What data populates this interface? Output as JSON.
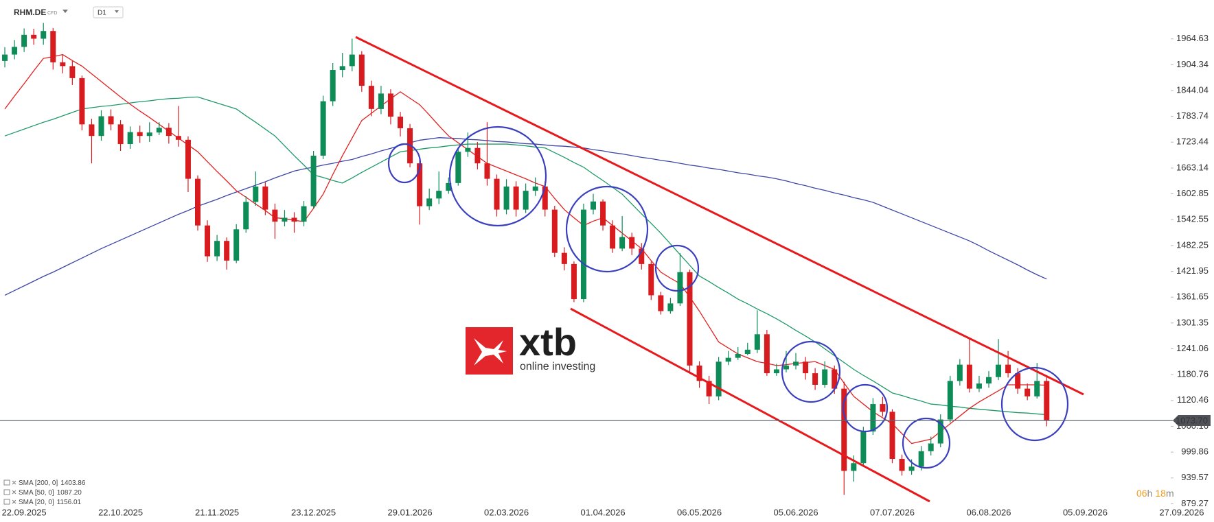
{
  "header": {
    "symbol": "RHM.DE",
    "instrument": "CFD",
    "interval": "D1"
  },
  "logo": {
    "name": "xtb",
    "tagline": "online investing"
  },
  "countdown": [
    "06",
    "h",
    "18",
    "m"
  ],
  "chart_data": {
    "type": "candlestick",
    "up_color": "#0d8c58",
    "down_color": "#d81b1f",
    "ylim": [
      876.7,
      2055.4
    ],
    "yticks": [
      1964.63,
      1904.34,
      1844.04,
      1783.74,
      1723.44,
      1663.14,
      1602.85,
      1542.55,
      1482.25,
      1421.95,
      1361.65,
      1301.35,
      1241.06,
      1180.76,
      1120.46,
      1060.16,
      999.86,
      939.57,
      879.27
    ],
    "last_price_label": "1073.70",
    "categories": [
      null,
      null,
      "22.09.2025",
      null,
      null,
      null,
      null,
      null,
      null,
      null,
      null,
      null,
      "22.10.2025",
      null,
      null,
      null,
      null,
      null,
      null,
      null,
      null,
      null,
      "21.11.2025",
      null,
      null,
      null,
      null,
      null,
      null,
      null,
      null,
      null,
      "23.12.2025",
      null,
      null,
      null,
      null,
      null,
      null,
      null,
      null,
      null,
      "29.01.2026",
      null,
      null,
      null,
      null,
      null,
      null,
      null,
      null,
      null,
      "02.03.2026",
      null,
      null,
      null,
      null,
      null,
      null,
      null,
      null,
      null,
      "01.04.2026",
      null,
      null,
      null,
      null,
      null,
      null,
      null,
      null,
      null,
      "06.05.2026",
      null,
      null,
      null,
      null,
      null,
      null,
      null,
      null,
      null,
      "05.06.2026",
      null,
      null,
      null,
      null,
      null,
      null,
      null,
      null,
      null,
      "07.07.2026",
      null,
      null,
      null,
      null,
      null,
      null,
      null,
      null,
      null,
      "06.08.2026",
      null,
      null,
      null,
      null,
      null,
      null,
      null,
      null,
      null,
      "05.09.2026",
      null,
      null,
      null,
      null,
      null,
      null,
      null,
      null,
      null,
      "27.09.2026"
    ],
    "open": [
      1913,
      1928,
      1946,
      1974,
      1965,
      1983,
      1910,
      1901,
      1873,
      1765,
      1738,
      1784,
      1765,
      1719,
      1747,
      1738,
      1746,
      1757,
      1738,
      1729,
      1638,
      1529,
      1457,
      1493,
      1447,
      1520,
      1584,
      1620,
      1566,
      1538,
      1547,
      1538,
      1574,
      1692,
      1819,
      1892,
      1901,
      1928,
      1855,
      1801,
      1837,
      1783,
      1756,
      1674,
      1574,
      1592,
      1610,
      1628,
      1701,
      1710,
      1674,
      1638,
      1566,
      1620,
      1566,
      1610,
      1620,
      1566,
      1465,
      1439,
      1357,
      1566,
      1585,
      1529,
      1475,
      1502,
      1475,
      1439,
      1366,
      1329,
      1347,
      1420,
      1202,
      1166,
      1130,
      1211,
      1220,
      1229,
      1239,
      1275,
      1184,
      1193,
      1202,
      1211,
      1184,
      1157,
      1193,
      1148,
      956,
      974,
      1048,
      1112,
      1094,
      984,
      956,
      966,
      1002,
      1020,
      1076,
      1166,
      1204,
      1148,
      1160,
      1175,
      1204,
      1184,
      1148,
      1130,
      1166,
      null,
      null,
      null,
      null,
      null,
      null,
      null,
      null,
      null,
      null,
      null,
      null,
      null,
      null
    ],
    "high": [
      1945,
      1962,
      1989,
      1988,
      2002,
      1990,
      1927,
      1913,
      1879,
      1778,
      1798,
      1800,
      1775,
      1760,
      1762,
      1770,
      1770,
      1768,
      1808,
      1737,
      1646,
      1541,
      1507,
      1501,
      1532,
      1597,
      1655,
      1630,
      1580,
      1565,
      1560,
      1586,
      1703,
      1832,
      1908,
      1932,
      1965,
      1936,
      1867,
      1855,
      1847,
      1794,
      1766,
      1682,
      1615,
      1655,
      1641,
      1712,
      1746,
      1724,
      1770,
      1648,
      1637,
      1632,
      1627,
      1641,
      1632,
      1575,
      1478,
      1445,
      1580,
      1603,
      1590,
      1541,
      1551,
      1512,
      1488,
      1445,
      1374,
      1360,
      1464,
      1426,
      1212,
      1178,
      1222,
      1236,
      1245,
      1255,
      1331,
      1285,
      1206,
      1236,
      1231,
      1222,
      1196,
      1212,
      1202,
      1164,
      992,
      1059,
      1126,
      1129,
      1100,
      994,
      983,
      1014,
      1036,
      1088,
      1178,
      1217,
      1263,
      1178,
      1189,
      1264,
      1236,
      1196,
      1160,
      1208,
      1175,
      null,
      null,
      null,
      null,
      null,
      null,
      null,
      null,
      null,
      null,
      null,
      null,
      null,
      null
    ],
    "low": [
      1898,
      1917,
      1934,
      1951,
      1951,
      1893,
      1884,
      1857,
      1751,
      1674,
      1727,
      1751,
      1703,
      1708,
      1722,
      1724,
      1740,
      1720,
      1713,
      1607,
      1517,
      1444,
      1446,
      1426,
      1441,
      1512,
      1575,
      1553,
      1498,
      1527,
      1512,
      1527,
      1568,
      1684,
      1808,
      1875,
      1889,
      1841,
      1784,
      1789,
      1765,
      1737,
      1665,
      1531,
      1565,
      1579,
      1603,
      1622,
      1689,
      1660,
      1622,
      1550,
      1555,
      1550,
      1558,
      1598,
      1550,
      1455,
      1424,
      1350,
      1350,
      1555,
      1517,
      1465,
      1469,
      1460,
      1426,
      1355,
      1321,
      1323,
      1341,
      1188,
      1150,
      1112,
      1121,
      1203,
      1215,
      1226,
      1231,
      1178,
      1178,
      1186,
      1193,
      1169,
      1145,
      1150,
      1136,
      900,
      931,
      965,
      1040,
      1083,
      974,
      945,
      947,
      957,
      992,
      1011,
      1069,
      1155,
      1139,
      1140,
      1150,
      1168,
      1174,
      1136,
      1121,
      1125,
      1060,
      null,
      null,
      null,
      null,
      null,
      null,
      null,
      null,
      null,
      null,
      null,
      null,
      null,
      null
    ],
    "close": [
      1928,
      1946,
      1974,
      1965,
      1983,
      1910,
      1901,
      1873,
      1765,
      1738,
      1784,
      1765,
      1719,
      1747,
      1738,
      1746,
      1757,
      1738,
      1729,
      1638,
      1529,
      1457,
      1493,
      1447,
      1520,
      1584,
      1620,
      1566,
      1538,
      1547,
      1538,
      1574,
      1692,
      1819,
      1892,
      1901,
      1928,
      1855,
      1801,
      1837,
      1783,
      1756,
      1674,
      1574,
      1592,
      1610,
      1628,
      1701,
      1710,
      1674,
      1638,
      1566,
      1620,
      1566,
      1610,
      1620,
      1566,
      1465,
      1439,
      1357,
      1566,
      1585,
      1529,
      1475,
      1502,
      1475,
      1439,
      1366,
      1329,
      1347,
      1420,
      1202,
      1166,
      1130,
      1211,
      1220,
      1229,
      1239,
      1275,
      1184,
      1193,
      1202,
      1211,
      1184,
      1157,
      1193,
      1148,
      956,
      974,
      1048,
      1112,
      1094,
      984,
      956,
      966,
      1002,
      1020,
      1076,
      1166,
      1204,
      1148,
      1160,
      1175,
      1204,
      1184,
      1148,
      1130,
      1166,
      1073.7,
      null,
      null,
      null,
      null,
      null,
      null,
      null,
      null,
      null,
      null,
      null,
      null,
      null,
      null
    ],
    "series": [
      {
        "name": "SMA [200, 0]",
        "legend_value": "1403.86",
        "color": "#3d45a6",
        "values": [
          1366,
          1377,
          1388,
          1399,
          1410,
          1420,
          1431,
          1442,
          1453,
          1464,
          1475,
          1485,
          1495,
          1505,
          1515,
          1525,
          1535,
          1545,
          1555,
          1564,
          1574,
          1582,
          1590,
          1599,
          1607,
          1615,
          1623,
          1631,
          1640,
          1648,
          1656,
          1661,
          1665,
          1670,
          1674,
          1679,
          1683,
          1690,
          1696,
          1703,
          1709,
          1716,
          1722,
          1728,
          1731,
          1734,
          1733,
          1732,
          1730,
          1729,
          1727,
          1725,
          1724,
          1722,
          1720,
          1719,
          1717,
          1715,
          1714,
          1712,
          1710,
          1706,
          1703,
          1699,
          1696,
          1692,
          1688,
          1685,
          1681,
          1678,
          1674,
          1670,
          1667,
          1663,
          1660,
          1656,
          1652,
          1649,
          1645,
          1642,
          1638,
          1633,
          1627,
          1622,
          1616,
          1611,
          1605,
          1600,
          1594,
          1589,
          1583,
          1574,
          1565,
          1556,
          1547,
          1538,
          1529,
          1520,
          1511,
          1502,
          1493,
          1482,
          1470,
          1459,
          1448,
          1437,
          1425,
          1414,
          1403.86,
          null,
          null,
          null,
          null,
          null,
          null,
          null,
          null,
          null,
          null,
          null,
          null,
          null,
          null
        ]
      },
      {
        "name": "SMA [50, 0]",
        "legend_value": "1087.20",
        "color": "#1d9a68",
        "values": [
          1738,
          1746,
          1754,
          1762,
          1770,
          1777,
          1785,
          1793,
          1801,
          1804,
          1807,
          1809,
          1812,
          1815,
          1818,
          1820,
          1823,
          1825,
          1826,
          1828,
          1829,
          1822,
          1815,
          1808,
          1801,
          1785,
          1770,
          1754,
          1738,
          1715,
          1692,
          1670,
          1647,
          1641,
          1634,
          1628,
          1640,
          1653,
          1665,
          1677,
          1689,
          1701,
          1704,
          1707,
          1710,
          1712,
          1715,
          1717,
          1719,
          1719,
          1719,
          1719,
          1719,
          1717,
          1715,
          1712,
          1710,
          1699,
          1688,
          1676,
          1665,
          1649,
          1634,
          1618,
          1602,
          1579,
          1556,
          1534,
          1511,
          1486,
          1461,
          1436,
          1411,
          1398,
          1384,
          1371,
          1357,
          1346,
          1334,
          1323,
          1311,
          1298,
          1284,
          1271,
          1257,
          1241,
          1225,
          1209,
          1193,
          1179,
          1166,
          1152,
          1138,
          1132,
          1125,
          1119,
          1112,
          1110,
          1107,
          1105,
          1102,
          1100,
          1098,
          1096,
          1094,
          1092,
          1091,
          1089,
          1087.2,
          null,
          null,
          null,
          null,
          null,
          null,
          null,
          null,
          null,
          null,
          null,
          null,
          null,
          null
        ]
      },
      {
        "name": "SMA [20, 0]",
        "legend_value": "1156.01",
        "color": "#e0201f",
        "values": [
          1801,
          1831,
          1860,
          1890,
          1919,
          1923,
          1928,
          1914,
          1901,
          1883,
          1865,
          1847,
          1829,
          1812,
          1796,
          1781,
          1765,
          1749,
          1733,
          1717,
          1701,
          1678,
          1655,
          1633,
          1610,
          1595,
          1579,
          1564,
          1547,
          1545,
          1541,
          1538,
          1569,
          1602,
          1648,
          1692,
          1733,
          1774,
          1791,
          1808,
          1825,
          1841,
          1826,
          1811,
          1787,
          1762,
          1738,
          1722,
          1706,
          1690,
          1674,
          1665,
          1656,
          1647,
          1638,
          1628,
          1620,
          1592,
          1566,
          1547,
          1529,
          1539,
          1547,
          1529,
          1511,
          1493,
          1475,
          1447,
          1420,
          1406,
          1393,
          1362,
          1329,
          1293,
          1257,
          1243,
          1229,
          1220,
          1211,
          1207,
          1202,
          1204,
          1207,
          1209,
          1211,
          1202,
          1193,
          1161,
          1130,
          1112,
          1094,
          1080,
          1066,
          1043,
          1020,
          1025,
          1030,
          1048,
          1066,
          1084,
          1102,
          1117,
          1130,
          1143,
          1157,
          1157,
          1157,
          1157,
          1156.01,
          null,
          null,
          null,
          null,
          null,
          null,
          null,
          null,
          null,
          null,
          null,
          null,
          null,
          null
        ]
      }
    ]
  }
}
